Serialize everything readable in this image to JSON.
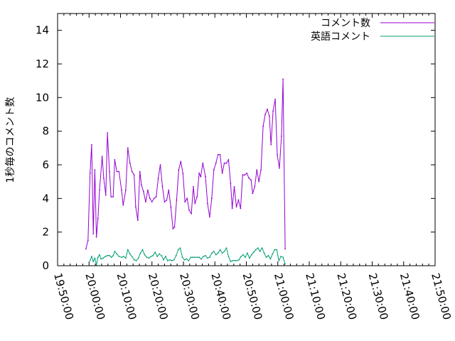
{
  "chart_data": {
    "type": "line",
    "title": "",
    "xlabel": "",
    "ylabel": "1秒毎のコメント数",
    "ylim": [
      0,
      15
    ],
    "yticks": [
      0,
      2,
      4,
      6,
      8,
      10,
      12,
      14
    ],
    "xlim": [
      "19:50:00",
      "21:50:00"
    ],
    "xticks": [
      "19:50:00",
      "20:00:00",
      "20:10:00",
      "20:20:00",
      "20:30:00",
      "20:40:00",
      "20:50:00",
      "21:00:00",
      "21:10:00",
      "21:20:00",
      "21:30:00",
      "21:40:00",
      "21:50:00"
    ],
    "grid": false,
    "legend_position": "top-right",
    "series": [
      {
        "name": "コメント数",
        "color": "#9400d3",
        "points": [
          [
            "19:59:00",
            1.0
          ],
          [
            "19:59:40",
            1.5
          ],
          [
            "20:00:20",
            5.5
          ],
          [
            "20:00:50",
            7.2
          ],
          [
            "20:01:20",
            1.9
          ],
          [
            "20:01:50",
            5.7
          ],
          [
            "20:02:20",
            1.7
          ],
          [
            "20:02:50",
            2.8
          ],
          [
            "20:03:20",
            4.5
          ],
          [
            "20:04:10",
            6.5
          ],
          [
            "20:04:40",
            5.2
          ],
          [
            "20:05:20",
            4.2
          ],
          [
            "20:05:50",
            7.9
          ],
          [
            "20:06:30",
            5.6
          ],
          [
            "20:07:00",
            4.1
          ],
          [
            "20:07:40",
            4.1
          ],
          [
            "20:08:10",
            6.3
          ],
          [
            "20:08:50",
            5.6
          ],
          [
            "20:09:30",
            5.6
          ],
          [
            "20:10:20",
            4.5
          ],
          [
            "20:10:50",
            3.6
          ],
          [
            "20:11:40",
            4.5
          ],
          [
            "20:12:20",
            7.0
          ],
          [
            "20:13:00",
            6.1
          ],
          [
            "20:13:40",
            5.6
          ],
          [
            "20:14:20",
            5.4
          ],
          [
            "20:14:50",
            3.5
          ],
          [
            "20:15:30",
            2.7
          ],
          [
            "20:16:10",
            5.6
          ],
          [
            "20:16:40",
            4.8
          ],
          [
            "20:17:20",
            4.4
          ],
          [
            "20:18:00",
            3.8
          ],
          [
            "20:18:40",
            4.5
          ],
          [
            "20:19:20",
            4.0
          ],
          [
            "20:20:00",
            3.8
          ],
          [
            "20:20:40",
            4.0
          ],
          [
            "20:21:20",
            4.1
          ],
          [
            "20:22:00",
            5.2
          ],
          [
            "20:22:40",
            6.0
          ],
          [
            "20:23:20",
            4.7
          ],
          [
            "20:24:00",
            3.8
          ],
          [
            "20:24:40",
            3.9
          ],
          [
            "20:25:20",
            4.5
          ],
          [
            "20:26:00",
            3.5
          ],
          [
            "20:26:40",
            2.2
          ],
          [
            "20:27:10",
            2.3
          ],
          [
            "20:27:50",
            3.9
          ],
          [
            "20:28:30",
            5.7
          ],
          [
            "20:29:10",
            6.2
          ],
          [
            "20:29:50",
            5.5
          ],
          [
            "20:30:30",
            3.8
          ],
          [
            "20:31:10",
            4.0
          ],
          [
            "20:31:50",
            3.3
          ],
          [
            "20:32:30",
            3.1
          ],
          [
            "20:33:10",
            4.7
          ],
          [
            "20:33:40",
            3.7
          ],
          [
            "20:34:20",
            4.1
          ],
          [
            "20:35:00",
            5.5
          ],
          [
            "20:35:30",
            5.3
          ],
          [
            "20:36:10",
            6.1
          ],
          [
            "20:37:00",
            5.3
          ],
          [
            "20:37:40",
            3.7
          ],
          [
            "20:38:20",
            2.9
          ],
          [
            "20:39:00",
            4.0
          ],
          [
            "20:39:40",
            5.7
          ],
          [
            "20:40:20",
            6.1
          ],
          [
            "20:41:00",
            6.6
          ],
          [
            "20:41:40",
            6.6
          ],
          [
            "20:42:20",
            5.5
          ],
          [
            "20:43:00",
            6.1
          ],
          [
            "20:43:40",
            6.1
          ],
          [
            "20:44:20",
            6.3
          ],
          [
            "20:45:00",
            4.9
          ],
          [
            "20:45:30",
            3.4
          ],
          [
            "20:46:10",
            4.7
          ],
          [
            "20:46:50",
            3.5
          ],
          [
            "20:47:30",
            3.9
          ],
          [
            "20:48:10",
            3.4
          ],
          [
            "20:48:50",
            5.4
          ],
          [
            "20:49:30",
            5.4
          ],
          [
            "20:50:10",
            5.5
          ],
          [
            "20:50:50",
            5.2
          ],
          [
            "20:51:30",
            5.1
          ],
          [
            "20:52:00",
            4.3
          ],
          [
            "20:52:40",
            4.7
          ],
          [
            "20:53:20",
            5.7
          ],
          [
            "20:54:00",
            5.0
          ],
          [
            "20:54:40",
            5.7
          ],
          [
            "20:55:20",
            8.3
          ],
          [
            "20:56:00",
            9.0
          ],
          [
            "20:56:40",
            9.3
          ],
          [
            "20:57:20",
            8.9
          ],
          [
            "20:57:50",
            7.2
          ],
          [
            "20:58:30",
            9.2
          ],
          [
            "20:59:10",
            9.9
          ],
          [
            "20:59:50",
            6.6
          ],
          [
            "21:00:30",
            5.8
          ],
          [
            "21:01:10",
            7.7
          ],
          [
            "21:01:40",
            11.1
          ],
          [
            "21:02:20",
            1.0
          ]
        ]
      },
      {
        "name": "英語コメント",
        "color": "#009e73",
        "points": [
          [
            "20:00:20",
            0.3
          ],
          [
            "20:00:50",
            0.55
          ],
          [
            "20:01:20",
            0.25
          ],
          [
            "20:01:50",
            0.45
          ],
          [
            "20:02:20",
            0.05
          ],
          [
            "20:02:50",
            0.5
          ],
          [
            "20:03:20",
            0.65
          ],
          [
            "20:03:50",
            0.4
          ],
          [
            "20:04:30",
            0.45
          ],
          [
            "20:05:10",
            0.55
          ],
          [
            "20:05:50",
            0.6
          ],
          [
            "20:06:30",
            0.6
          ],
          [
            "20:07:10",
            0.5
          ],
          [
            "20:07:40",
            0.6
          ],
          [
            "20:08:10",
            0.85
          ],
          [
            "20:08:50",
            0.7
          ],
          [
            "20:09:30",
            0.55
          ],
          [
            "20:10:20",
            0.5
          ],
          [
            "20:11:00",
            0.55
          ],
          [
            "20:11:40",
            0.45
          ],
          [
            "20:12:20",
            0.95
          ],
          [
            "20:13:00",
            0.7
          ],
          [
            "20:13:40",
            0.55
          ],
          [
            "20:14:20",
            0.35
          ],
          [
            "20:15:00",
            0.3
          ],
          [
            "20:15:40",
            0.45
          ],
          [
            "20:16:20",
            0.75
          ],
          [
            "20:17:00",
            0.95
          ],
          [
            "20:17:40",
            0.65
          ],
          [
            "20:18:20",
            0.5
          ],
          [
            "20:19:00",
            0.45
          ],
          [
            "20:19:40",
            0.55
          ],
          [
            "20:20:20",
            0.6
          ],
          [
            "20:21:00",
            0.8
          ],
          [
            "20:21:40",
            0.55
          ],
          [
            "20:22:20",
            0.7
          ],
          [
            "20:23:00",
            0.6
          ],
          [
            "20:23:40",
            0.35
          ],
          [
            "20:24:20",
            0.55
          ],
          [
            "20:25:00",
            0.3
          ],
          [
            "20:25:40",
            0.35
          ],
          [
            "20:26:20",
            0.3
          ],
          [
            "20:27:00",
            0.35
          ],
          [
            "20:27:40",
            0.6
          ],
          [
            "20:28:20",
            0.95
          ],
          [
            "20:29:00",
            1.05
          ],
          [
            "20:29:40",
            0.5
          ],
          [
            "20:30:20",
            0.35
          ],
          [
            "20:31:00",
            0.4
          ],
          [
            "20:31:40",
            0.3
          ],
          [
            "20:32:20",
            0.5
          ],
          [
            "20:33:00",
            0.5
          ],
          [
            "20:33:40",
            0.5
          ],
          [
            "20:34:20",
            0.5
          ],
          [
            "20:35:00",
            0.5
          ],
          [
            "20:35:40",
            0.4
          ],
          [
            "20:36:20",
            0.55
          ],
          [
            "20:37:00",
            0.6
          ],
          [
            "20:37:40",
            0.45
          ],
          [
            "20:38:20",
            0.5
          ],
          [
            "20:39:00",
            0.75
          ],
          [
            "20:39:40",
            0.85
          ],
          [
            "20:40:20",
            0.65
          ],
          [
            "20:41:00",
            0.75
          ],
          [
            "20:41:40",
            0.95
          ],
          [
            "20:42:20",
            0.75
          ],
          [
            "20:43:00",
            0.85
          ],
          [
            "20:43:40",
            1.05
          ],
          [
            "20:44:20",
            0.55
          ],
          [
            "20:45:00",
            0.25
          ],
          [
            "20:45:40",
            0.3
          ],
          [
            "20:46:20",
            0.3
          ],
          [
            "20:47:00",
            0.3
          ],
          [
            "20:47:40",
            0.35
          ],
          [
            "20:48:20",
            0.55
          ],
          [
            "20:49:00",
            0.65
          ],
          [
            "20:49:40",
            0.5
          ],
          [
            "20:50:20",
            0.75
          ],
          [
            "20:51:00",
            0.45
          ],
          [
            "20:51:40",
            0.65
          ],
          [
            "20:52:20",
            0.8
          ],
          [
            "20:53:00",
            0.95
          ],
          [
            "20:53:40",
            1.05
          ],
          [
            "20:54:20",
            0.85
          ],
          [
            "20:55:00",
            1.05
          ],
          [
            "20:55:40",
            0.75
          ],
          [
            "20:56:20",
            0.5
          ],
          [
            "20:57:00",
            0.6
          ],
          [
            "20:57:40",
            0.4
          ],
          [
            "20:58:20",
            0.7
          ],
          [
            "20:59:00",
            0.95
          ],
          [
            "20:59:40",
            0.95
          ],
          [
            "21:00:20",
            0.3
          ],
          [
            "21:01:00",
            0.55
          ],
          [
            "21:01:40",
            0.5
          ],
          [
            "21:02:20",
            0.1
          ]
        ]
      }
    ]
  }
}
